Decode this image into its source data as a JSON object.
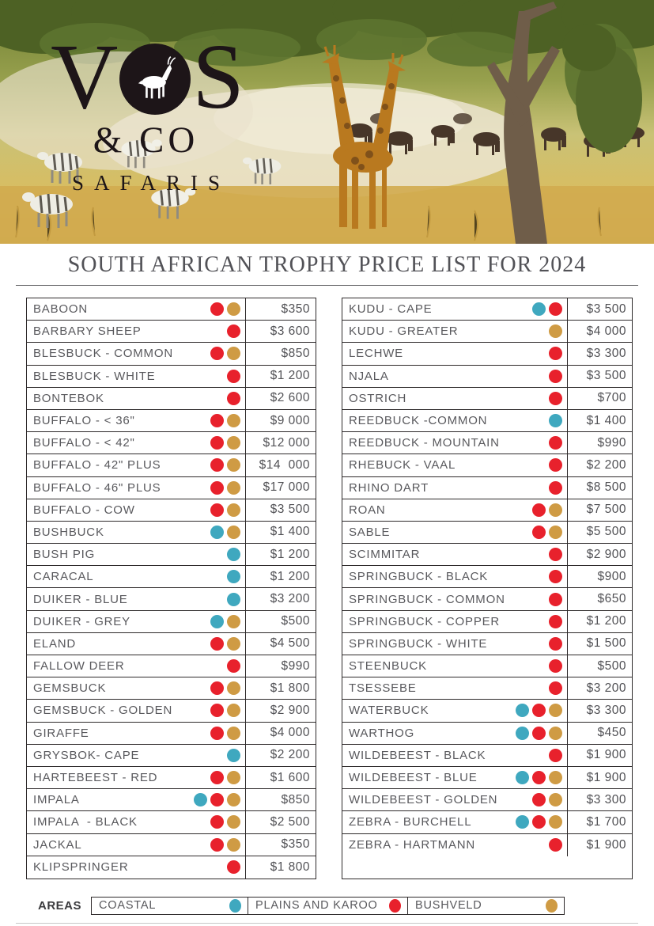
{
  "brand": {
    "letter_v": "V",
    "letter_s": "S",
    "line2": "& CO",
    "line3": "SAFARIS"
  },
  "page": {
    "title": "SOUTH AFRICAN TROPHY PRICE LIST FOR 2024"
  },
  "colors": {
    "coastal": "#3fa8bf",
    "plains_and_karoo": "#e8212c",
    "bushveld": "#cf9b44",
    "table_border": "#2e2a2b",
    "text_gray": "#59595d"
  },
  "price_list": {
    "left_column": [
      {
        "name": "BABOON",
        "areas": [
          "plains_and_karoo",
          "bushveld"
        ],
        "price": "$350"
      },
      {
        "name": "BARBARY SHEEP",
        "areas": [
          "plains_and_karoo"
        ],
        "price": "$3 600"
      },
      {
        "name": "BLESBUCK - COMMON",
        "areas": [
          "plains_and_karoo",
          "bushveld"
        ],
        "price": "$850"
      },
      {
        "name": "BLESBUCK - WHITE",
        "areas": [
          "plains_and_karoo"
        ],
        "price": "$1 200"
      },
      {
        "name": "BONTEBOK",
        "areas": [
          "plains_and_karoo"
        ],
        "price": "$2 600"
      },
      {
        "name": "BUFFALO - < 36\"",
        "areas": [
          "plains_and_karoo",
          "bushveld"
        ],
        "price": "$9 000"
      },
      {
        "name": "BUFFALO - < 42\"",
        "areas": [
          "plains_and_karoo",
          "bushveld"
        ],
        "price": "$12 000"
      },
      {
        "name": "BUFFALO - 42\" PLUS",
        "areas": [
          "plains_and_karoo",
          "bushveld"
        ],
        "price": "$14  000"
      },
      {
        "name": "BUFFALO - 46\" PLUS",
        "areas": [
          "plains_and_karoo",
          "bushveld"
        ],
        "price": "$17 000"
      },
      {
        "name": "BUFFALO - COW",
        "areas": [
          "plains_and_karoo",
          "bushveld"
        ],
        "price": "$3 500"
      },
      {
        "name": "BUSHBUCK",
        "areas": [
          "coastal",
          "bushveld"
        ],
        "price": "$1 400"
      },
      {
        "name": "BUSH PIG",
        "areas": [
          "coastal"
        ],
        "price": "$1 200"
      },
      {
        "name": "CARACAL",
        "areas": [
          "coastal"
        ],
        "price": "$1 200"
      },
      {
        "name": "DUIKER - BLUE",
        "areas": [
          "coastal"
        ],
        "price": "$3 200"
      },
      {
        "name": "DUIKER - GREY",
        "areas": [
          "coastal",
          "bushveld"
        ],
        "price": "$500"
      },
      {
        "name": "ELAND",
        "areas": [
          "plains_and_karoo",
          "bushveld"
        ],
        "price": "$4 500"
      },
      {
        "name": "FALLOW DEER",
        "areas": [
          "plains_and_karoo"
        ],
        "price": "$990"
      },
      {
        "name": "GEMSBUCK",
        "areas": [
          "plains_and_karoo",
          "bushveld"
        ],
        "price": "$1 800"
      },
      {
        "name": "GEMSBUCK - GOLDEN",
        "areas": [
          "plains_and_karoo",
          "bushveld"
        ],
        "price": "$2 900"
      },
      {
        "name": "GIRAFFE",
        "areas": [
          "plains_and_karoo",
          "bushveld"
        ],
        "price": "$4 000"
      },
      {
        "name": "GRYSBOK- CAPE",
        "areas": [
          "coastal"
        ],
        "price": "$2 200"
      },
      {
        "name": "HARTEBEEST - RED",
        "areas": [
          "plains_and_karoo",
          "bushveld"
        ],
        "price": "$1 600"
      },
      {
        "name": "IMPALA",
        "areas": [
          "coastal",
          "plains_and_karoo",
          "bushveld"
        ],
        "price": "$850"
      },
      {
        "name": "IMPALA  - BLACK",
        "areas": [
          "plains_and_karoo",
          "bushveld"
        ],
        "price": "$2 500"
      },
      {
        "name": "JACKAL",
        "areas": [
          "plains_and_karoo",
          "bushveld"
        ],
        "price": "$350"
      },
      {
        "name": "KLIPSPRINGER",
        "areas": [
          "plains_and_karoo"
        ],
        "price": "$1 800"
      }
    ],
    "right_column": [
      {
        "name": "KUDU - CAPE",
        "areas": [
          "coastal",
          "plains_and_karoo"
        ],
        "price": "$3 500"
      },
      {
        "name": "KUDU - GREATER",
        "areas": [
          "bushveld"
        ],
        "price": "$4 000"
      },
      {
        "name": "LECHWE",
        "areas": [
          "plains_and_karoo"
        ],
        "price": "$3 300"
      },
      {
        "name": "NJALA",
        "areas": [
          "plains_and_karoo"
        ],
        "price": "$3 500"
      },
      {
        "name": "OSTRICH",
        "areas": [
          "plains_and_karoo"
        ],
        "price": "$700"
      },
      {
        "name": "REEDBUCK -COMMON",
        "areas": [
          "coastal"
        ],
        "price": "$1 400"
      },
      {
        "name": "REEDBUCK - MOUNTAIN",
        "areas": [
          "plains_and_karoo"
        ],
        "price": "$990"
      },
      {
        "name": "RHEBUCK - VAAL",
        "areas": [
          "plains_and_karoo"
        ],
        "price": "$2 200"
      },
      {
        "name": "RHINO DART",
        "areas": [
          "plains_and_karoo"
        ],
        "price": "$8 500"
      },
      {
        "name": "ROAN",
        "areas": [
          "plains_and_karoo",
          "bushveld"
        ],
        "price": "$7 500"
      },
      {
        "name": "SABLE",
        "areas": [
          "plains_and_karoo",
          "bushveld"
        ],
        "price": "$5 500"
      },
      {
        "name": "SCIMMITAR",
        "areas": [
          "plains_and_karoo"
        ],
        "price": "$2 900"
      },
      {
        "name": "SPRINGBUCK - BLACK",
        "areas": [
          "plains_and_karoo"
        ],
        "price": "$900"
      },
      {
        "name": "SPRINGBUCK - COMMON",
        "areas": [
          "plains_and_karoo"
        ],
        "price": "$650"
      },
      {
        "name": "SPRINGBUCK - COPPER",
        "areas": [
          "plains_and_karoo"
        ],
        "price": "$1 200"
      },
      {
        "name": "SPRINGBUCK - WHITE",
        "areas": [
          "plains_and_karoo"
        ],
        "price": "$1 500"
      },
      {
        "name": "STEENBUCK",
        "areas": [
          "plains_and_karoo"
        ],
        "price": "$500"
      },
      {
        "name": "TSESSEBE",
        "areas": [
          "plains_and_karoo"
        ],
        "price": "$3 200"
      },
      {
        "name": "WATERBUCK",
        "areas": [
          "coastal",
          "plains_and_karoo",
          "bushveld"
        ],
        "price": "$3 300"
      },
      {
        "name": "WARTHOG",
        "areas": [
          "coastal",
          "plains_and_karoo",
          "bushveld"
        ],
        "price": "$450"
      },
      {
        "name": "WILDEBEEST - BLACK",
        "areas": [
          "plains_and_karoo"
        ],
        "price": "$1 900"
      },
      {
        "name": "WILDEBEEST - BLUE",
        "areas": [
          "coastal",
          "plains_and_karoo",
          "bushveld"
        ],
        "price": "$1 900"
      },
      {
        "name": "WILDEBEEST - GOLDEN",
        "areas": [
          "plains_and_karoo",
          "bushveld"
        ],
        "price": "$3 300"
      },
      {
        "name": "ZEBRA - BURCHELL",
        "areas": [
          "coastal",
          "plains_and_karoo",
          "bushveld"
        ],
        "price": "$1 700"
      },
      {
        "name": "ZEBRA - HARTMANN",
        "areas": [
          "plains_and_karoo"
        ],
        "price": "$1 900"
      }
    ]
  },
  "legend": {
    "label": "AREAS",
    "items": [
      {
        "label": "COASTAL",
        "area": "coastal"
      },
      {
        "label": "PLAINS AND KAROO",
        "area": "plains_and_karoo"
      },
      {
        "label": "BUSHVELD",
        "area": "bushveld"
      }
    ]
  }
}
